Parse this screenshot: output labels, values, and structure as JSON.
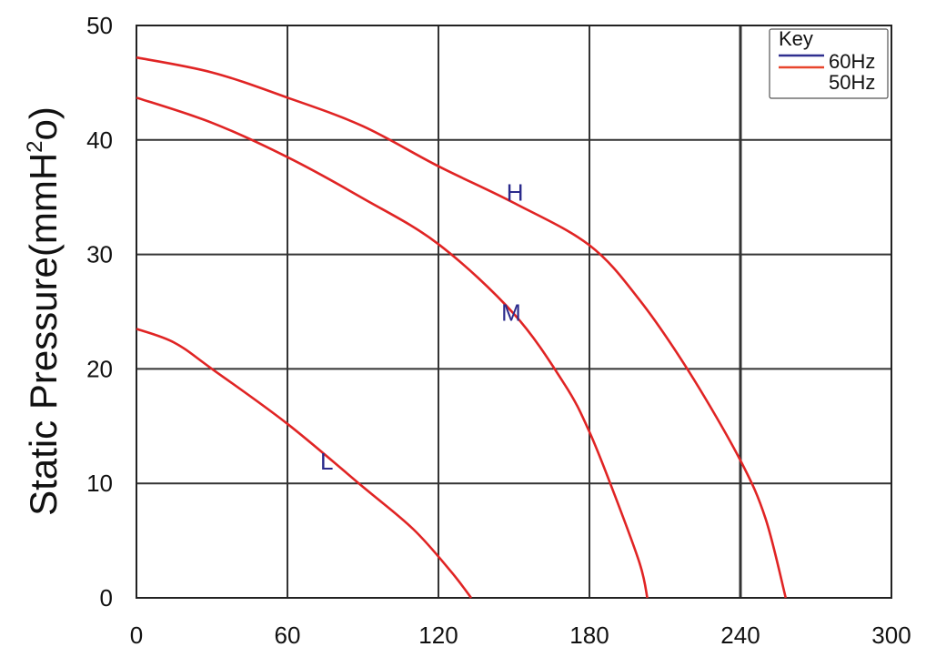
{
  "chart_data": {
    "type": "line",
    "ylabel_parts": [
      "Static Pressure(mmH",
      "2",
      "o)"
    ],
    "xlim": [
      0,
      300
    ],
    "ylim": [
      0,
      50
    ],
    "x_ticks": [
      0,
      60,
      120,
      180,
      240,
      300
    ],
    "y_ticks": [
      0,
      10,
      20,
      30,
      40,
      50
    ],
    "grid": true,
    "legend": {
      "placement": "top-right",
      "title": "Key",
      "entries": [
        {
          "label": "60Hz",
          "color": "#2f2f8f"
        },
        {
          "label": "50Hz",
          "color": "#e8452c"
        }
      ]
    },
    "series": [
      {
        "label": "H",
        "label_at": {
          "x": 147,
          "y": 35.5
        },
        "color": "#e02424",
        "points": [
          [
            0,
            47.2
          ],
          [
            30,
            45.9
          ],
          [
            60,
            43.7
          ],
          [
            90,
            41.2
          ],
          [
            120,
            37.7
          ],
          [
            150,
            34.5
          ],
          [
            180,
            30.8
          ],
          [
            200,
            26.0
          ],
          [
            220,
            19.6
          ],
          [
            240,
            12.0
          ],
          [
            250,
            6.9
          ],
          [
            258,
            0
          ]
        ]
      },
      {
        "label": "M",
        "label_at": {
          "x": 145,
          "y": 25.0
        },
        "color": "#e02424",
        "points": [
          [
            0,
            43.7
          ],
          [
            30,
            41.5
          ],
          [
            60,
            38.5
          ],
          [
            90,
            34.9
          ],
          [
            120,
            30.9
          ],
          [
            150,
            24.8
          ],
          [
            170,
            18.7
          ],
          [
            180,
            14.5
          ],
          [
            190,
            9.0
          ],
          [
            200,
            3.0
          ],
          [
            203,
            0
          ]
        ]
      },
      {
        "label": "L",
        "label_at": {
          "x": 73,
          "y": 12.0
        },
        "color": "#e02424",
        "points": [
          [
            0,
            23.5
          ],
          [
            15,
            22.3
          ],
          [
            30,
            20.0
          ],
          [
            60,
            15.2
          ],
          [
            90,
            9.7
          ],
          [
            110,
            6.0
          ],
          [
            125,
            2.3
          ],
          [
            133,
            0
          ]
        ]
      }
    ]
  }
}
